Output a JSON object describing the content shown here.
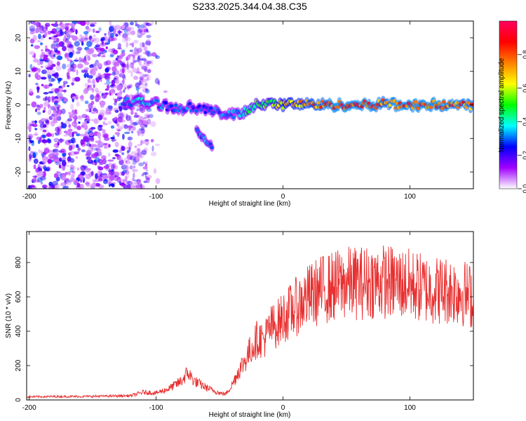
{
  "title": "S233.2025.344.04.38.C35",
  "chart_data": [
    {
      "type": "heatmap",
      "title": "S233.2025.344.04.38.C35",
      "xlabel": "Height of straight line (km)",
      "ylabel": "Frequency (Hz)",
      "xlim": [
        -202,
        150
      ],
      "ylim": [
        -25,
        25
      ],
      "xticks": [
        -200,
        -100,
        0,
        100
      ],
      "yticks": [
        -20,
        -10,
        0,
        10,
        20
      ],
      "colorbar": {
        "label": "Normalized spectral amplitude",
        "range": [
          0,
          1
        ],
        "ticks": [
          0,
          0.2,
          0.4,
          0.6,
          0.8
        ],
        "tick_labels": [
          "0.0",
          "0.2",
          "0.4",
          "0.6",
          "0.8"
        ],
        "colormap": [
          "#ffffff",
          "#a000ff",
          "#0000ff",
          "#00ffff",
          "#00ff00",
          "#ffff00",
          "#ff8000",
          "#ff0000",
          "#ff0060"
        ]
      },
      "scatter_noise": {
        "x_range": [
          -200,
          -105
        ],
        "amplitude_range": [
          0.05,
          0.3
        ]
      },
      "ridge": [
        {
          "x": -125,
          "f": 1.0,
          "amp": 0.35
        },
        {
          "x": -110,
          "f": 0.8,
          "amp": 0.4
        },
        {
          "x": -100,
          "f": 0.5,
          "amp": 0.35
        },
        {
          "x": -90,
          "f": -0.5,
          "amp": 0.3
        },
        {
          "x": -80,
          "f": -1.0,
          "amp": 0.35
        },
        {
          "x": -70,
          "f": -0.5,
          "amp": 0.3
        },
        {
          "x": -60,
          "f": -1.5,
          "amp": 0.3
        },
        {
          "x": -50,
          "f": -2.5,
          "amp": 0.35
        },
        {
          "x": -40,
          "f": -3.0,
          "amp": 0.35
        },
        {
          "x": -30,
          "f": -2.0,
          "amp": 0.45
        },
        {
          "x": -20,
          "f": 0.5,
          "amp": 0.55
        },
        {
          "x": -10,
          "f": 0.3,
          "amp": 0.6
        },
        {
          "x": 0,
          "f": 0.0,
          "amp": 0.7
        },
        {
          "x": 10,
          "f": 0.5,
          "amp": 0.75
        },
        {
          "x": 20,
          "f": 0.2,
          "amp": 0.8
        },
        {
          "x": 30,
          "f": 0.0,
          "amp": 0.85
        },
        {
          "x": 40,
          "f": 0.0,
          "amp": 0.9
        },
        {
          "x": 50,
          "f": 0.0,
          "amp": 0.9
        },
        {
          "x": 60,
          "f": 0.0,
          "amp": 0.9
        },
        {
          "x": 70,
          "f": 0.0,
          "amp": 0.9
        },
        {
          "x": 80,
          "f": 0.5,
          "amp": 0.85
        },
        {
          "x": 90,
          "f": 0.0,
          "amp": 0.9
        },
        {
          "x": 100,
          "f": 0.0,
          "amp": 0.9
        },
        {
          "x": 110,
          "f": 0.0,
          "amp": 0.9
        },
        {
          "x": 120,
          "f": 0.0,
          "amp": 0.9
        },
        {
          "x": 130,
          "f": 0.0,
          "amp": 0.9
        },
        {
          "x": 140,
          "f": 0.0,
          "amp": 0.88
        },
        {
          "x": 150,
          "f": 0.0,
          "amp": 0.85
        }
      ],
      "branch": [
        {
          "x": -68,
          "f": -7.0,
          "amp": 0.3
        },
        {
          "x": -64,
          "f": -9.5,
          "amp": 0.35
        },
        {
          "x": -60,
          "f": -11.0,
          "amp": 0.35
        },
        {
          "x": -55,
          "f": -12.5,
          "amp": 0.3
        }
      ]
    },
    {
      "type": "line",
      "xlabel": "Height of straight line (km)",
      "ylabel": "SNR (10 * v/v)",
      "xlim": [
        -202,
        150
      ],
      "ylim": [
        0,
        980
      ],
      "xticks": [
        -200,
        -100,
        0,
        100
      ],
      "yticks": [
        0,
        200,
        400,
        600,
        800
      ],
      "color": "#e83030",
      "series": [
        {
          "name": "SNR",
          "x": [
            -202,
            -180,
            -160,
            -140,
            -120,
            -110,
            -100,
            -90,
            -80,
            -75,
            -70,
            -60,
            -50,
            -45,
            -40,
            -35,
            -30,
            -25,
            -20,
            -15,
            -10,
            -5,
            0,
            10,
            20,
            30,
            40,
            50,
            60,
            70,
            80,
            90,
            100,
            110,
            120,
            130,
            140,
            150
          ],
          "y": [
            18,
            20,
            20,
            22,
            25,
            45,
            40,
            65,
            110,
            160,
            110,
            70,
            40,
            35,
            90,
            170,
            230,
            300,
            360,
            350,
            420,
            440,
            480,
            540,
            600,
            640,
            660,
            680,
            680,
            690,
            690,
            680,
            670,
            650,
            640,
            640,
            630,
            600
          ]
        }
      ]
    }
  ]
}
